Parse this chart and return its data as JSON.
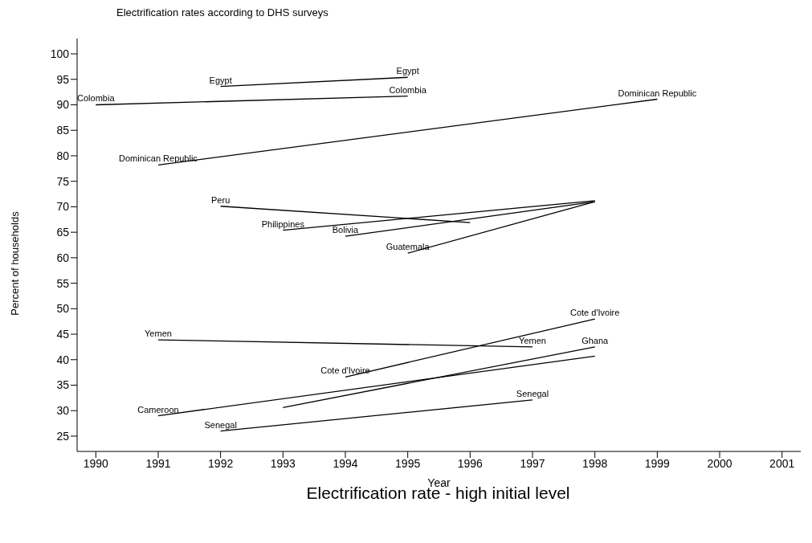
{
  "chart_data": {
    "type": "line",
    "title": "Electrification rate - high initial level",
    "subtitle": "Electrification rates according to DHS surveys",
    "xlabel": "Year",
    "ylabel": "Percent of households",
    "xlim": [
      1989.7,
      2001.3
    ],
    "xticks": [
      1990,
      1991,
      1992,
      1993,
      1994,
      1995,
      1996,
      1997,
      1998,
      1999,
      2000,
      2001
    ],
    "ylim": [
      22,
      103
    ],
    "yticks": [
      25,
      30,
      35,
      40,
      45,
      50,
      55,
      60,
      65,
      70,
      75,
      80,
      85,
      90,
      95,
      100
    ],
    "grid": false,
    "legend": false,
    "marker": "none",
    "line_style": "solid",
    "series": [
      {
        "color": "#000000",
        "x": [
          1990,
          1995
        ],
        "values": [
          90.0,
          91.7
        ]
      },
      {
        "color": "#000000",
        "x": [
          1992,
          1995
        ],
        "values": [
          93.6,
          95.4
        ]
      },
      {
        "color": "#000000",
        "x": [
          1991,
          1999
        ],
        "values": [
          78.2,
          91.1
        ]
      },
      {
        "color": "#000000",
        "x": [
          1992,
          1996
        ],
        "values": [
          70.1,
          66.9
        ]
      },
      {
        "color": "#000000",
        "x": [
          1993,
          1998
        ],
        "values": [
          65.4,
          71.2
        ]
      },
      {
        "color": "#000000",
        "x": [
          1994,
          1998
        ],
        "values": [
          64.2,
          71.0
        ]
      },
      {
        "color": "#000000",
        "x": [
          1995,
          1998
        ],
        "values": [
          60.9,
          71.0
        ]
      },
      {
        "color": "#000000",
        "x": [
          1991,
          1997
        ],
        "values": [
          43.9,
          42.5
        ]
      },
      {
        "color": "#000000",
        "x": [
          1994,
          1998
        ],
        "values": [
          36.6,
          48.0
        ]
      },
      {
        "color": "#000000",
        "x": [
          1993,
          1998
        ],
        "values": [
          30.6,
          42.5
        ]
      },
      {
        "color": "#000000",
        "x": [
          1991,
          1998
        ],
        "values": [
          29.0,
          40.7
        ]
      },
      {
        "color": "#000000",
        "x": [
          1992,
          1997
        ],
        "values": [
          26.0,
          32.1
        ]
      }
    ],
    "annotations": [
      {
        "text": "Colombia",
        "x": 1990,
        "y": 90.0
      },
      {
        "text": "Colombia",
        "x": 1995,
        "y": 91.7
      },
      {
        "text": "Egypt",
        "x": 1992,
        "y": 93.6
      },
      {
        "text": "Egypt",
        "x": 1995,
        "y": 95.4
      },
      {
        "text": "Dominican Republic",
        "x": 1991,
        "y": 78.2
      },
      {
        "text": "Dominican Republic",
        "x": 1999,
        "y": 91.1
      },
      {
        "text": "Peru",
        "x": 1992,
        "y": 70.1
      },
      {
        "text": "Philippines",
        "x": 1993,
        "y": 65.4
      },
      {
        "text": "Bolivia",
        "x": 1994,
        "y": 64.2
      },
      {
        "text": "Guatemala",
        "x": 1995,
        "y": 60.9
      },
      {
        "text": "Yemen",
        "x": 1991,
        "y": 43.9
      },
      {
        "text": "Yemen",
        "x": 1997,
        "y": 42.5
      },
      {
        "text": "Cote d'Ivoire",
        "x": 1994,
        "y": 36.6
      },
      {
        "text": "Cote d'Ivoire",
        "x": 1998,
        "y": 48.0
      },
      {
        "text": "Ghana",
        "x": 1998,
        "y": 42.5
      },
      {
        "text": "Cameroon",
        "x": 1991,
        "y": 29.0
      },
      {
        "text": "Senegal",
        "x": 1992,
        "y": 26.0
      },
      {
        "text": "Senegal",
        "x": 1997,
        "y": 32.1
      }
    ]
  }
}
